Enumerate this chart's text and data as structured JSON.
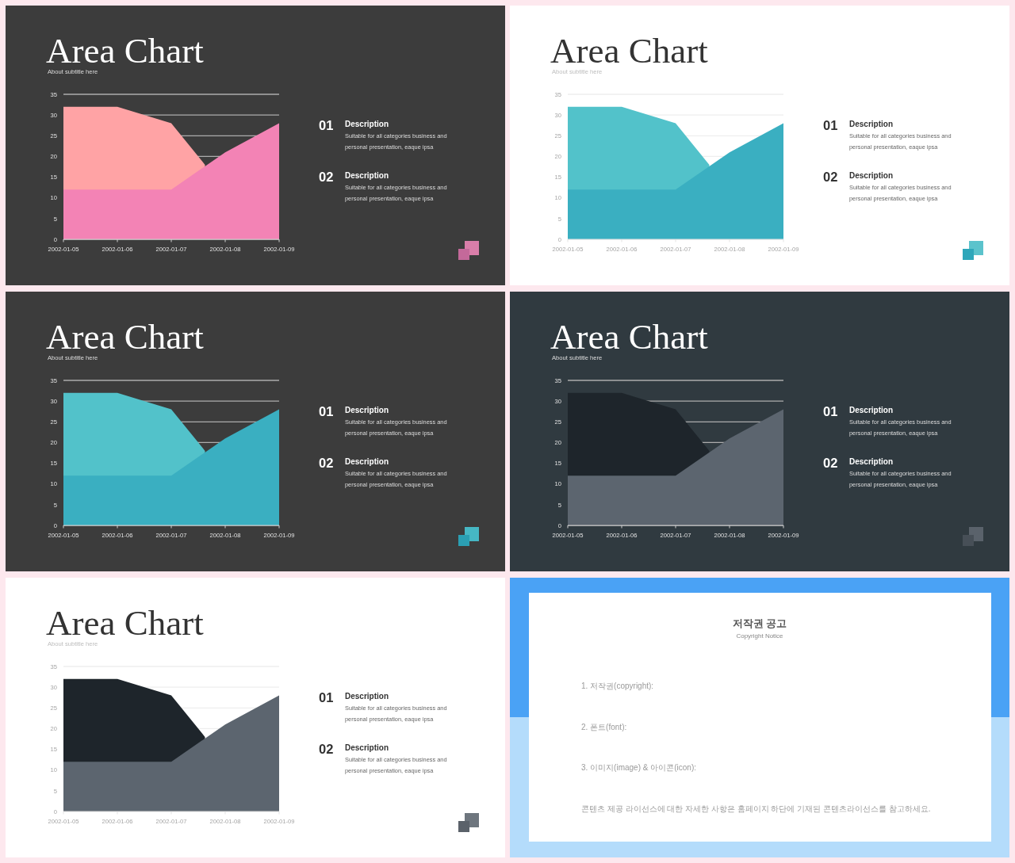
{
  "chart_data": [
    {
      "type": "area",
      "title": "Area Chart",
      "subtitle": "About subtitle here",
      "x": [
        "2002-01-05",
        "2002-01-06",
        "2002-01-07",
        "2002-01-08",
        "2002-01-09"
      ],
      "xlim": [
        "2002-01-05",
        "2002-01-09"
      ],
      "xticks": [
        "2002-01-05",
        "2002-01-06",
        "2002-01-07",
        "2002-01-08",
        "2002-01-09"
      ],
      "series": [
        {
          "color": "#ffa3a5",
          "x": [
            "2002-01-05",
            "2002-01-06",
            "2002-01-07",
            "2002-01-07T15:00"
          ],
          "values": [
            32,
            32,
            28,
            18
          ]
        },
        {
          "color": "#f383b5",
          "values": [
            12,
            12,
            12,
            21,
            28
          ]
        }
      ],
      "ylim": [
        0,
        35
      ],
      "yticks": [
        0,
        5,
        10,
        15,
        20,
        25,
        30,
        35
      ],
      "grid": "y",
      "annotations": [
        "01",
        "Description",
        "Suitable for all categories business and personal presentation, eaque ipsa",
        "02",
        "Description",
        "Suitable for all categories business and personal presentation, eaque ipsa"
      ]
    },
    {
      "type": "area",
      "title": "Area Chart",
      "subtitle": "About subtitle here",
      "x": [
        "2002-01-05",
        "2002-01-06",
        "2002-01-07",
        "2002-01-08",
        "2002-01-09"
      ],
      "xlim": [
        "2002-01-05",
        "2002-01-09"
      ],
      "xticks": [
        "2002-01-05",
        "2002-01-06",
        "2002-01-07",
        "2002-01-08",
        "2002-01-09"
      ],
      "series": [
        {
          "color": "#52c2ca",
          "x": [
            "2002-01-05",
            "2002-01-06",
            "2002-01-07",
            "2002-01-07T15:00"
          ],
          "values": [
            32,
            32,
            28,
            18
          ]
        },
        {
          "color": "#3aafc1",
          "values": [
            12,
            12,
            12,
            21,
            28
          ]
        }
      ],
      "ylim": [
        0,
        35
      ],
      "yticks": [
        0,
        5,
        10,
        15,
        20,
        25,
        30,
        35
      ],
      "grid": "y",
      "annotations": [
        "01",
        "Description",
        "Suitable for all categories business and personal presentation, eaque ipsa",
        "02",
        "Description",
        "Suitable for all categories business and personal presentation, eaque ipsa"
      ]
    },
    {
      "type": "area",
      "title": "Area Chart",
      "subtitle": "About subtitle here",
      "x": [
        "2002-01-05",
        "2002-01-06",
        "2002-01-07",
        "2002-01-08",
        "2002-01-09"
      ],
      "xlim": [
        "2002-01-05",
        "2002-01-09"
      ],
      "xticks": [
        "2002-01-05",
        "2002-01-06",
        "2002-01-07",
        "2002-01-08",
        "2002-01-09"
      ],
      "series": [
        {
          "color": "#52c2ca",
          "x": [
            "2002-01-05",
            "2002-01-06",
            "2002-01-07",
            "2002-01-07T15:00"
          ],
          "values": [
            32,
            32,
            28,
            18
          ]
        },
        {
          "color": "#3aafc1",
          "values": [
            12,
            12,
            12,
            21,
            28
          ]
        }
      ],
      "ylim": [
        0,
        35
      ],
      "yticks": [
        0,
        5,
        10,
        15,
        20,
        25,
        30,
        35
      ],
      "grid": "y",
      "annotations": [
        "01",
        "Description",
        "Suitable for all categories business and personal presentation, eaque ipsa",
        "02",
        "Description",
        "Suitable for all categories business and personal presentation, eaque ipsa"
      ]
    },
    {
      "type": "area",
      "title": "Area Chart",
      "subtitle": "About subtitle here",
      "x": [
        "2002-01-05",
        "2002-01-06",
        "2002-01-07",
        "2002-01-08",
        "2002-01-09"
      ],
      "xlim": [
        "2002-01-05",
        "2002-01-09"
      ],
      "xticks": [
        "2002-01-05",
        "2002-01-06",
        "2002-01-07",
        "2002-01-08",
        "2002-01-09"
      ],
      "series": [
        {
          "color": "#1e252b",
          "x": [
            "2002-01-05",
            "2002-01-06",
            "2002-01-07",
            "2002-01-07T15:00"
          ],
          "values": [
            32,
            32,
            28,
            18
          ]
        },
        {
          "color": "#5c656f",
          "values": [
            12,
            12,
            12,
            21,
            28
          ]
        }
      ],
      "ylim": [
        0,
        35
      ],
      "yticks": [
        0,
        5,
        10,
        15,
        20,
        25,
        30,
        35
      ],
      "grid": "y",
      "annotations": [
        "01",
        "Description",
        "Suitable for all categories business and personal presentation, eaque ipsa",
        "02",
        "Description",
        "Suitable for all categories business and personal presentation, eaque ipsa"
      ]
    },
    {
      "type": "area",
      "title": "Area Chart",
      "subtitle": "About subtitle here",
      "x": [
        "2002-01-05",
        "2002-01-06",
        "2002-01-07",
        "2002-01-08",
        "2002-01-09"
      ],
      "xlim": [
        "2002-01-05",
        "2002-01-09"
      ],
      "xticks": [
        "2002-01-05",
        "2002-01-06",
        "2002-01-07",
        "2002-01-08",
        "2002-01-09"
      ],
      "series": [
        {
          "color": "#1e252b",
          "x": [
            "2002-01-05",
            "2002-01-06",
            "2002-01-07",
            "2002-01-07T15:00"
          ],
          "values": [
            32,
            32,
            28,
            18
          ]
        },
        {
          "color": "#5c656f",
          "values": [
            12,
            12,
            12,
            21,
            28
          ]
        }
      ],
      "ylim": [
        0,
        35
      ],
      "yticks": [
        0,
        5,
        10,
        15,
        20,
        25,
        30,
        35
      ],
      "grid": "y",
      "annotations": [
        "01",
        "Description",
        "Suitable for all categories business and personal presentation, eaque ipsa",
        "02",
        "Description",
        "Suitable for all categories business and personal presentation, eaque ipsa"
      ]
    },
    {
      "type": "other",
      "title": "저작권 공고",
      "subtitle": "Copyright Notice",
      "annotations": [
        "1. 저작권(copyright):",
        "2. 폰트(font):",
        "3. 이미지(image) & 아이콘(icon):",
        "콘텐츠 제공 라이선스에 대한 자세한 사항은 홈페이지 하단에 기재된 콘텐츠라이선스를 참고하세요."
      ]
    }
  ]
}
